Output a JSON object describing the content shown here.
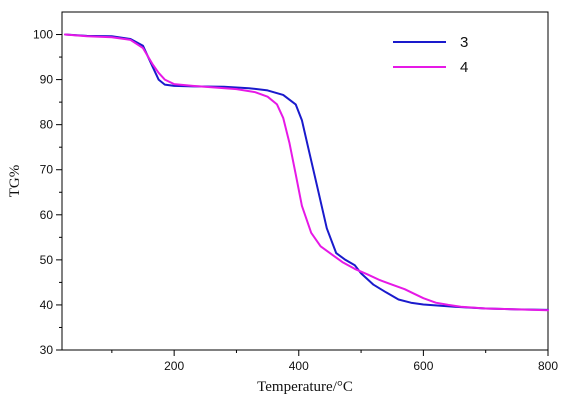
{
  "chart_data": {
    "type": "line",
    "xlabel": "Temperature/°C",
    "ylabel": "TG%",
    "xlim": [
      20,
      800
    ],
    "ylim": [
      30,
      105
    ],
    "x_ticks": [
      200,
      400,
      600,
      800
    ],
    "y_ticks": [
      30,
      40,
      50,
      60,
      70,
      80,
      90,
      100
    ],
    "grid": false,
    "legend_position": "top-right",
    "series": [
      {
        "name": "3",
        "color": "#1a1acc",
        "points": [
          [
            25,
            100
          ],
          [
            60,
            99.7
          ],
          [
            100,
            99.6
          ],
          [
            130,
            99
          ],
          [
            150,
            97.5
          ],
          [
            165,
            93
          ],
          [
            175,
            90
          ],
          [
            185,
            88.9
          ],
          [
            200,
            88.6
          ],
          [
            230,
            88.5
          ],
          [
            280,
            88.4
          ],
          [
            320,
            88.1
          ],
          [
            350,
            87.6
          ],
          [
            375,
            86.6
          ],
          [
            395,
            84.5
          ],
          [
            405,
            81
          ],
          [
            415,
            75
          ],
          [
            430,
            66
          ],
          [
            445,
            57
          ],
          [
            460,
            51.5
          ],
          [
            475,
            50
          ],
          [
            490,
            48.8
          ],
          [
            500,
            47
          ],
          [
            520,
            44.5
          ],
          [
            540,
            42.8
          ],
          [
            560,
            41.2
          ],
          [
            580,
            40.5
          ],
          [
            600,
            40.1
          ],
          [
            650,
            39.6
          ],
          [
            700,
            39.2
          ],
          [
            750,
            39
          ],
          [
            800,
            38.9
          ]
        ]
      },
      {
        "name": "4",
        "color": "#e619e6",
        "points": [
          [
            25,
            100
          ],
          [
            60,
            99.6
          ],
          [
            100,
            99.4
          ],
          [
            130,
            98.8
          ],
          [
            150,
            97
          ],
          [
            165,
            93.5
          ],
          [
            175,
            91.5
          ],
          [
            185,
            90
          ],
          [
            200,
            89
          ],
          [
            230,
            88.6
          ],
          [
            260,
            88.3
          ],
          [
            300,
            87.9
          ],
          [
            330,
            87.2
          ],
          [
            350,
            86.2
          ],
          [
            365,
            84.5
          ],
          [
            375,
            81.5
          ],
          [
            385,
            76
          ],
          [
            395,
            69
          ],
          [
            405,
            62
          ],
          [
            420,
            56
          ],
          [
            435,
            53
          ],
          [
            450,
            51.5
          ],
          [
            470,
            49.5
          ],
          [
            490,
            48
          ],
          [
            510,
            46.8
          ],
          [
            530,
            45.5
          ],
          [
            550,
            44.5
          ],
          [
            570,
            43.5
          ],
          [
            585,
            42.5
          ],
          [
            600,
            41.5
          ],
          [
            620,
            40.5
          ],
          [
            640,
            40
          ],
          [
            660,
            39.6
          ],
          [
            700,
            39.2
          ],
          [
            750,
            39
          ],
          [
            800,
            38.8
          ]
        ]
      }
    ]
  }
}
